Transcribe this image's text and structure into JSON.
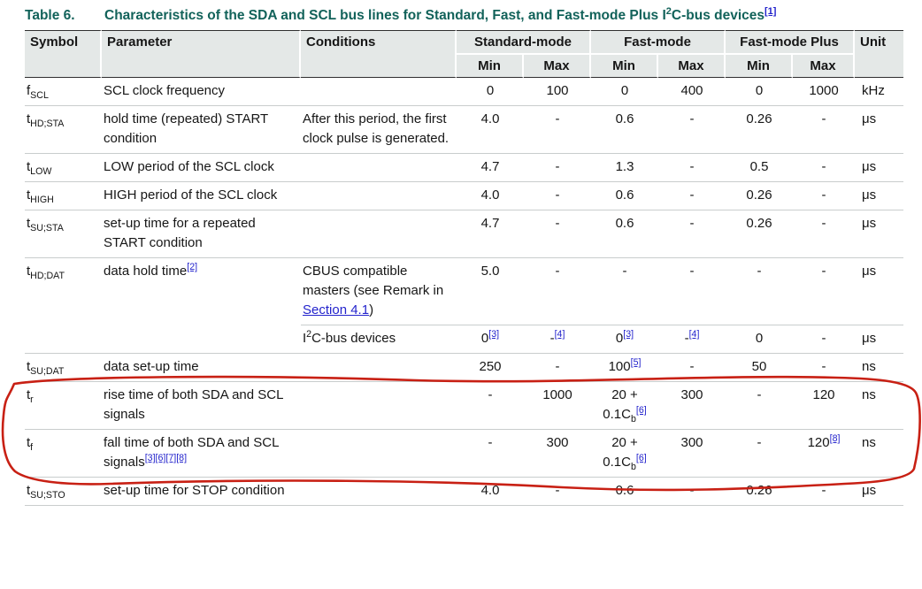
{
  "colors": {
    "title": "#12625a",
    "link": "#2323cc",
    "header_bg": "#e4e8e7",
    "row_divider": "#c9cdcd",
    "table_border": "#2f2f2f",
    "annotation_red": "#c82014"
  },
  "title": {
    "label": "Table 6.",
    "segments": [
      {
        "t": "Characteristics of the SDA and SCL bus lines for Standard, Fast, and Fast-mode Plus I"
      },
      {
        "sup": "2"
      },
      {
        "t": "C-bus devices"
      },
      {
        "sup": "[1]",
        "link": true,
        "name": "footnote-1-link"
      }
    ]
  },
  "table": {
    "headers": {
      "symbol": "Symbol",
      "parameter": "Parameter",
      "conditions": "Conditions",
      "min": "Min",
      "max": "Max",
      "unit": "Unit"
    },
    "groups": [
      "Standard-mode",
      "Fast-mode",
      "Fast-mode Plus"
    ],
    "rows": [
      {
        "symbol": [
          {
            "t": "f"
          },
          {
            "sub": "SCL"
          }
        ],
        "parameter": [
          {
            "t": "SCL clock frequency"
          }
        ],
        "conditions": [],
        "values": [
          [
            {
              "t": "0"
            }
          ],
          [
            {
              "t": "100"
            }
          ],
          [
            {
              "t": "0"
            }
          ],
          [
            {
              "t": "400"
            }
          ],
          [
            {
              "t": "0"
            }
          ],
          [
            {
              "t": "1000"
            }
          ]
        ],
        "unit": "kHz"
      },
      {
        "symbol": [
          {
            "t": "t"
          },
          {
            "sub": "HD;STA"
          }
        ],
        "parameter": [
          {
            "t": "hold time (repeated) START condition"
          }
        ],
        "conditions": [
          {
            "t": "After this period, the first clock pulse is generated."
          }
        ],
        "values": [
          [
            {
              "t": "4.0"
            }
          ],
          [
            {
              "t": "-"
            }
          ],
          [
            {
              "t": "0.6"
            }
          ],
          [
            {
              "t": "-"
            }
          ],
          [
            {
              "t": "0.26"
            }
          ],
          [
            {
              "t": "-"
            }
          ]
        ],
        "unit": "μs"
      },
      {
        "symbol": [
          {
            "t": "t"
          },
          {
            "sub": "LOW"
          }
        ],
        "parameter": [
          {
            "t": "LOW period of the SCL clock"
          }
        ],
        "conditions": [],
        "values": [
          [
            {
              "t": "4.7"
            }
          ],
          [
            {
              "t": "-"
            }
          ],
          [
            {
              "t": "1.3"
            }
          ],
          [
            {
              "t": "-"
            }
          ],
          [
            {
              "t": "0.5"
            }
          ],
          [
            {
              "t": "-"
            }
          ]
        ],
        "unit": "μs"
      },
      {
        "symbol": [
          {
            "t": "t"
          },
          {
            "sub": "HIGH"
          }
        ],
        "parameter": [
          {
            "t": "HIGH period of the SCL clock"
          }
        ],
        "conditions": [],
        "values": [
          [
            {
              "t": "4.0"
            }
          ],
          [
            {
              "t": "-"
            }
          ],
          [
            {
              "t": "0.6"
            }
          ],
          [
            {
              "t": "-"
            }
          ],
          [
            {
              "t": "0.26"
            }
          ],
          [
            {
              "t": "-"
            }
          ]
        ],
        "unit": "μs"
      },
      {
        "symbol": [
          {
            "t": "t"
          },
          {
            "sub": "SU;STA"
          }
        ],
        "parameter": [
          {
            "t": "set-up time for a repeated START condition"
          }
        ],
        "conditions": [],
        "values": [
          [
            {
              "t": "4.7"
            }
          ],
          [
            {
              "t": "-"
            }
          ],
          [
            {
              "t": "0.6"
            }
          ],
          [
            {
              "t": "-"
            }
          ],
          [
            {
              "t": "0.26"
            }
          ],
          [
            {
              "t": "-"
            }
          ]
        ],
        "unit": "μs"
      },
      {
        "symbol": [
          {
            "t": "t"
          },
          {
            "sub": "HD;DAT"
          }
        ],
        "parameter": [
          {
            "t": "data hold time"
          },
          {
            "sup": "[2]",
            "link": true,
            "name": "footnote-2-link"
          }
        ],
        "conditions": [
          {
            "t": "CBUS compatible masters (see Remark in "
          },
          {
            "t": "Section 4.1",
            "link": true,
            "name": "section-4-1-link"
          },
          {
            "t": ")"
          }
        ],
        "values": [
          [
            {
              "t": "5.0"
            }
          ],
          [
            {
              "t": "-"
            }
          ],
          [
            {
              "t": "-"
            }
          ],
          [
            {
              "t": "-"
            }
          ],
          [
            {
              "t": "-"
            }
          ],
          [
            {
              "t": "-"
            }
          ]
        ],
        "unit": "μs"
      },
      {
        "symbol": [],
        "parameter": [],
        "conditions": [
          {
            "t": "I"
          },
          {
            "sup": "2"
          },
          {
            "t": "C-bus devices"
          }
        ],
        "values": [
          [
            {
              "t": "0"
            },
            {
              "sup": "[3]",
              "link": true,
              "name": "footnote-3-link"
            }
          ],
          [
            {
              "t": "-"
            },
            {
              "sup": "[4]",
              "link": true,
              "name": "footnote-4-link"
            }
          ],
          [
            {
              "t": "0"
            },
            {
              "sup": "[3]",
              "link": true,
              "name": "footnote-3-link"
            }
          ],
          [
            {
              "t": "-"
            },
            {
              "sup": "[4]",
              "link": true,
              "name": "footnote-4-link"
            }
          ],
          [
            {
              "t": "0"
            }
          ],
          [
            {
              "t": "-"
            }
          ]
        ],
        "unit": "μs",
        "divider": "partial"
      },
      {
        "symbol": [
          {
            "t": "t"
          },
          {
            "sub": "SU;DAT"
          }
        ],
        "parameter": [
          {
            "t": "data set-up time"
          }
        ],
        "conditions": [],
        "values": [
          [
            {
              "t": "250"
            }
          ],
          [
            {
              "t": "-"
            }
          ],
          [
            {
              "t": "100"
            },
            {
              "sup": "[5]",
              "link": true,
              "name": "footnote-5-link"
            }
          ],
          [
            {
              "t": "-"
            }
          ],
          [
            {
              "t": "50"
            }
          ],
          [
            {
              "t": "-"
            }
          ]
        ],
        "unit": "ns"
      },
      {
        "symbol": [
          {
            "t": "t"
          },
          {
            "sub": "r"
          }
        ],
        "parameter": [
          {
            "t": "rise time of both SDA and SCL signals"
          }
        ],
        "conditions": [],
        "values": [
          [
            {
              "t": "-"
            }
          ],
          [
            {
              "t": "1000"
            }
          ],
          [
            {
              "t": "20 + 0.1C"
            },
            {
              "sub": "b"
            },
            {
              "sup": "[6]",
              "link": true,
              "name": "footnote-6-link"
            }
          ],
          [
            {
              "t": "300"
            }
          ],
          [
            {
              "t": "-"
            }
          ],
          [
            {
              "t": "120"
            }
          ]
        ],
        "unit": "ns",
        "circled": true
      },
      {
        "symbol": [
          {
            "t": "t"
          },
          {
            "sub": "f"
          }
        ],
        "parameter": [
          {
            "t": "fall time of both SDA and SCL signals"
          },
          {
            "sup": "[3][6][7][8]",
            "link": true,
            "name": "footnote-3678-link"
          }
        ],
        "conditions": [],
        "values": [
          [
            {
              "t": "-"
            }
          ],
          [
            {
              "t": "300"
            }
          ],
          [
            {
              "t": "20 + 0.1C"
            },
            {
              "sub": "b"
            },
            {
              "sup": "[6]",
              "link": true,
              "name": "footnote-6-link"
            }
          ],
          [
            {
              "t": "300"
            }
          ],
          [
            {
              "t": "-"
            }
          ],
          [
            {
              "t": "120"
            },
            {
              "sup": "[8]",
              "link": true,
              "name": "footnote-8-link"
            }
          ]
        ],
        "unit": "ns",
        "circled": true
      },
      {
        "symbol": [
          {
            "t": "t"
          },
          {
            "sub": "SU;STO"
          }
        ],
        "parameter": [
          {
            "t": "set-up time for STOP condition"
          }
        ],
        "conditions": [],
        "values": [
          [
            {
              "t": "4.0"
            }
          ],
          [
            {
              "t": "-"
            }
          ],
          [
            {
              "t": "0.6"
            }
          ],
          [
            {
              "t": "-"
            }
          ],
          [
            {
              "t": "0.26"
            }
          ],
          [
            {
              "t": "-"
            }
          ]
        ],
        "unit": "μs"
      }
    ]
  },
  "annotation": {
    "type": "hand-drawn-ellipse",
    "color": "#c82014",
    "circled_row_symbols": [
      "tr",
      "tf"
    ]
  }
}
